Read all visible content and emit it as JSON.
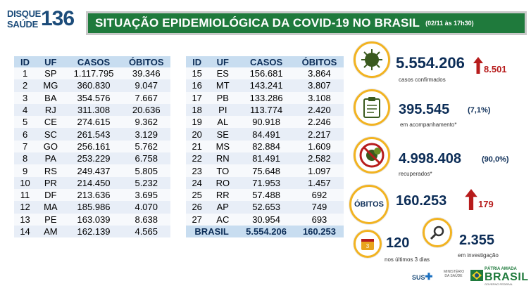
{
  "logo": {
    "line1": "DISQUE",
    "line2": "SAÚDE",
    "number": "136"
  },
  "header": {
    "title": "SITUAÇÃO EPIDEMIOLÓGICA DA COVID-19 NO BRASIL",
    "date": "(02/11 às 17h30)"
  },
  "table": {
    "columns": [
      "ID",
      "UF",
      "CASOS",
      "ÓBITOS"
    ],
    "left": [
      {
        "id": "1",
        "uf": "SP",
        "casos": "1.117.795",
        "obitos": "39.346"
      },
      {
        "id": "2",
        "uf": "MG",
        "casos": "360.830",
        "obitos": "9.047"
      },
      {
        "id": "3",
        "uf": "BA",
        "casos": "354.576",
        "obitos": "7.667"
      },
      {
        "id": "4",
        "uf": "RJ",
        "casos": "311.308",
        "obitos": "20.636"
      },
      {
        "id": "5",
        "uf": "CE",
        "casos": "274.615",
        "obitos": "9.362"
      },
      {
        "id": "6",
        "uf": "SC",
        "casos": "261.543",
        "obitos": "3.129"
      },
      {
        "id": "7",
        "uf": "GO",
        "casos": "256.161",
        "obitos": "5.762"
      },
      {
        "id": "8",
        "uf": "PA",
        "casos": "253.229",
        "obitos": "6.758"
      },
      {
        "id": "9",
        "uf": "RS",
        "casos": "249.437",
        "obitos": "5.805"
      },
      {
        "id": "10",
        "uf": "PR",
        "casos": "214.450",
        "obitos": "5.232"
      },
      {
        "id": "11",
        "uf": "DF",
        "casos": "213.636",
        "obitos": "3.695"
      },
      {
        "id": "12",
        "uf": "MA",
        "casos": "185.986",
        "obitos": "4.070"
      },
      {
        "id": "13",
        "uf": "PE",
        "casos": "163.039",
        "obitos": "8.638"
      },
      {
        "id": "14",
        "uf": "AM",
        "casos": "162.139",
        "obitos": "4.565"
      }
    ],
    "right": [
      {
        "id": "15",
        "uf": "ES",
        "casos": "156.681",
        "obitos": "3.864"
      },
      {
        "id": "16",
        "uf": "MT",
        "casos": "143.241",
        "obitos": "3.807"
      },
      {
        "id": "17",
        "uf": "PB",
        "casos": "133.286",
        "obitos": "3.108"
      },
      {
        "id": "18",
        "uf": "PI",
        "casos": "113.774",
        "obitos": "2.420"
      },
      {
        "id": "19",
        "uf": "AL",
        "casos": "90.918",
        "obitos": "2.246"
      },
      {
        "id": "20",
        "uf": "SE",
        "casos": "84.491",
        "obitos": "2.217"
      },
      {
        "id": "21",
        "uf": "MS",
        "casos": "82.884",
        "obitos": "1.609"
      },
      {
        "id": "22",
        "uf": "RN",
        "casos": "81.491",
        "obitos": "2.582"
      },
      {
        "id": "23",
        "uf": "TO",
        "casos": "75.648",
        "obitos": "1.097"
      },
      {
        "id": "24",
        "uf": "RO",
        "casos": "71.953",
        "obitos": "1.457"
      },
      {
        "id": "25",
        "uf": "RR",
        "casos": "57.488",
        "obitos": "692"
      },
      {
        "id": "26",
        "uf": "AP",
        "casos": "52.653",
        "obitos": "749"
      },
      {
        "id": "27",
        "uf": "AC",
        "casos": "30.954",
        "obitos": "693"
      }
    ],
    "total": {
      "label": "BRASIL",
      "casos": "5.554.206",
      "obitos": "160.253"
    }
  },
  "stats": {
    "confirmed": {
      "value": "5.554.206",
      "delta": "8.501",
      "label": "casos confirmados"
    },
    "monitoring": {
      "value": "395.545",
      "pct": "(7,1%)",
      "label": "em acompanhamento*"
    },
    "recovered": {
      "value": "4.998.408",
      "pct": "(90,0%)",
      "label": "recuperados*"
    },
    "deaths": {
      "tag": "ÓBITOS",
      "value": "160.253",
      "delta": "179"
    },
    "recent": {
      "value": "120",
      "label": "nos últimos 3 dias",
      "icon_text": "3"
    },
    "investigation": {
      "value": "2.355",
      "label": "em investigação"
    }
  },
  "footer": {
    "sus": "SUS",
    "ministry": "MINISTÉRIO DA SAÚDE",
    "brasil_tag": "PÁTRIA AMADA",
    "brasil": "BRASIL",
    "gov": "GOVERNO FEDERAL"
  },
  "colors": {
    "header_green": "#1f7a3c",
    "navy": "#0c2d57",
    "accent_yellow": "#f2b321",
    "red": "#b71c1c",
    "table_header": "#c8ddf0"
  }
}
